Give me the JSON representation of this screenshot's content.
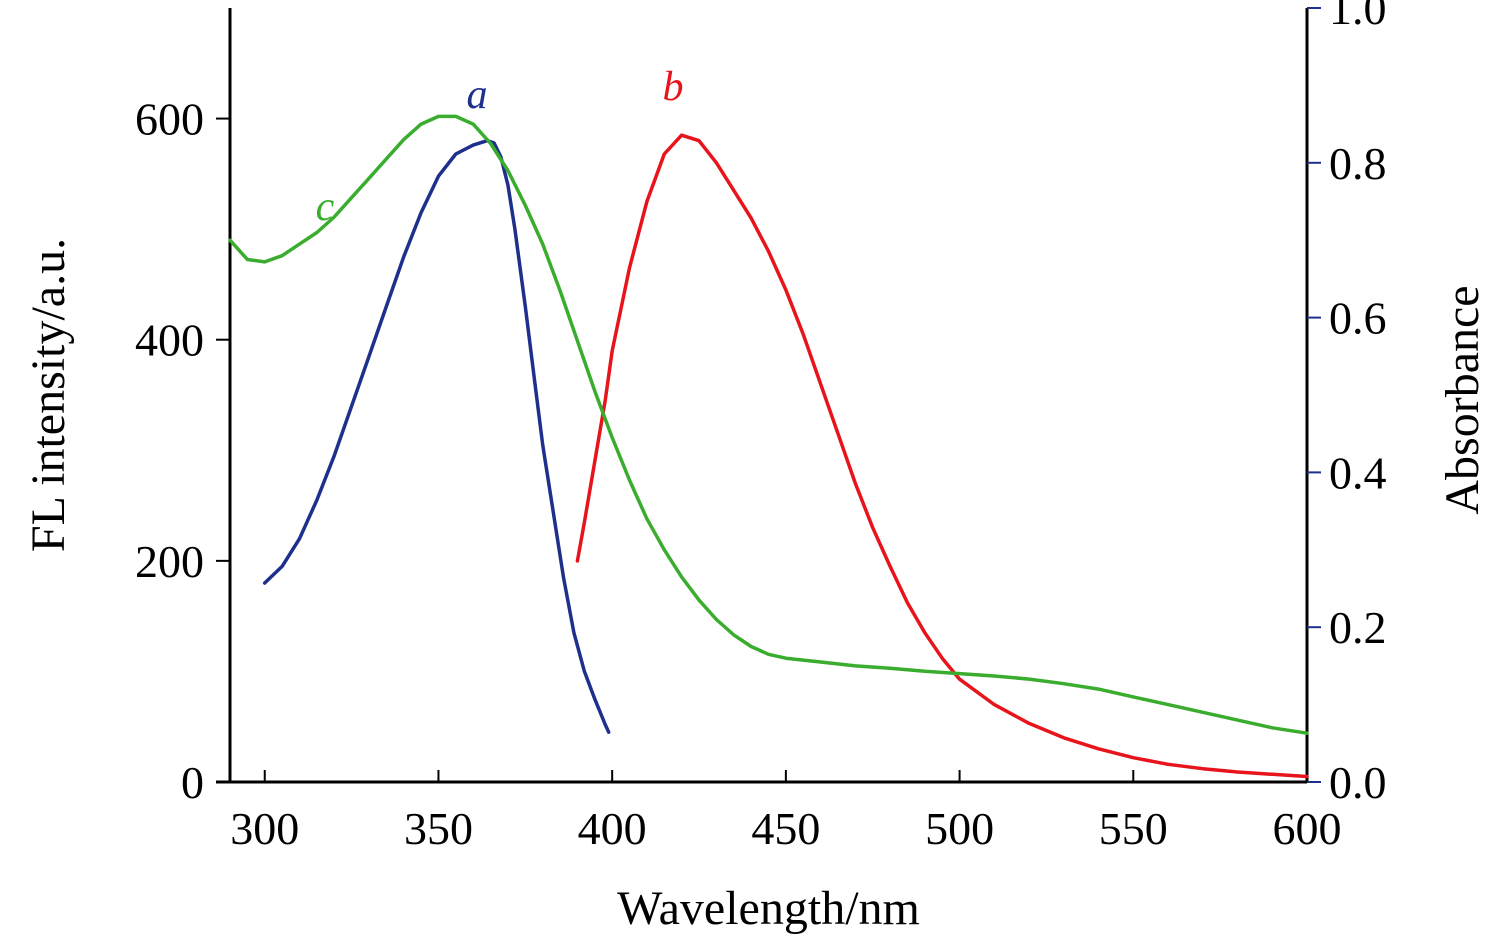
{
  "chart_data": {
    "type": "line",
    "title": "",
    "xlabel": "Wavelength/nm",
    "ylabel_left": "FL intensity/a.u.",
    "ylabel_right": "Absorbance",
    "xlim": [
      290,
      600
    ],
    "ylim_left": [
      0,
      700
    ],
    "ylim_right": [
      0,
      1.0
    ],
    "x_ticks": [
      300,
      350,
      400,
      450,
      500,
      550,
      600
    ],
    "y_ticks_left": [
      0,
      200,
      400,
      600
    ],
    "y_ticks_right": [
      "0.0",
      "0.2",
      "0.4",
      "0.6",
      "0.8",
      "1.0"
    ],
    "grid": false,
    "legend": "none",
    "series": [
      {
        "label": "a",
        "axis": "left",
        "color": "#1e2f8c",
        "points": [
          [
            300,
            180
          ],
          [
            305,
            195
          ],
          [
            310,
            220
          ],
          [
            315,
            255
          ],
          [
            320,
            295
          ],
          [
            325,
            340
          ],
          [
            330,
            385
          ],
          [
            335,
            430
          ],
          [
            340,
            475
          ],
          [
            345,
            515
          ],
          [
            350,
            548
          ],
          [
            355,
            568
          ],
          [
            360,
            576
          ],
          [
            364,
            580
          ],
          [
            366,
            578
          ],
          [
            368,
            565
          ],
          [
            370,
            540
          ],
          [
            372,
            500
          ],
          [
            375,
            430
          ],
          [
            378,
            355
          ],
          [
            380,
            305
          ],
          [
            383,
            245
          ],
          [
            386,
            185
          ],
          [
            389,
            135
          ],
          [
            392,
            100
          ],
          [
            395,
            75
          ],
          [
            398,
            52
          ],
          [
            399,
            45
          ]
        ]
      },
      {
        "label": "b",
        "axis": "left",
        "color": "#e8141c",
        "points": [
          [
            390,
            200
          ],
          [
            392,
            235
          ],
          [
            395,
            290
          ],
          [
            398,
            345
          ],
          [
            400,
            390
          ],
          [
            405,
            465
          ],
          [
            410,
            525
          ],
          [
            415,
            568
          ],
          [
            420,
            585
          ],
          [
            425,
            580
          ],
          [
            430,
            560
          ],
          [
            435,
            535
          ],
          [
            440,
            510
          ],
          [
            445,
            480
          ],
          [
            450,
            445
          ],
          [
            455,
            405
          ],
          [
            460,
            360
          ],
          [
            465,
            315
          ],
          [
            470,
            270
          ],
          [
            475,
            230
          ],
          [
            480,
            195
          ],
          [
            485,
            162
          ],
          [
            490,
            135
          ],
          [
            495,
            112
          ],
          [
            500,
            93
          ],
          [
            510,
            70
          ],
          [
            520,
            53
          ],
          [
            530,
            40
          ],
          [
            540,
            30
          ],
          [
            550,
            22
          ],
          [
            560,
            16
          ],
          [
            570,
            12
          ],
          [
            580,
            9
          ],
          [
            590,
            7
          ],
          [
            600,
            5
          ]
        ]
      },
      {
        "label": "c",
        "axis": "right",
        "color": "#3aad2e",
        "points": [
          [
            290,
            0.7
          ],
          [
            295,
            0.675
          ],
          [
            300,
            0.672
          ],
          [
            305,
            0.68
          ],
          [
            310,
            0.695
          ],
          [
            315,
            0.71
          ],
          [
            320,
            0.73
          ],
          [
            325,
            0.755
          ],
          [
            330,
            0.78
          ],
          [
            335,
            0.805
          ],
          [
            340,
            0.83
          ],
          [
            345,
            0.85
          ],
          [
            350,
            0.86
          ],
          [
            355,
            0.86
          ],
          [
            360,
            0.85
          ],
          [
            365,
            0.825
          ],
          [
            370,
            0.79
          ],
          [
            375,
            0.745
          ],
          [
            380,
            0.695
          ],
          [
            385,
            0.635
          ],
          [
            390,
            0.57
          ],
          [
            395,
            0.505
          ],
          [
            400,
            0.445
          ],
          [
            405,
            0.39
          ],
          [
            410,
            0.34
          ],
          [
            415,
            0.3
          ],
          [
            420,
            0.265
          ],
          [
            425,
            0.235
          ],
          [
            430,
            0.21
          ],
          [
            435,
            0.19
          ],
          [
            440,
            0.175
          ],
          [
            445,
            0.165
          ],
          [
            450,
            0.16
          ],
          [
            460,
            0.155
          ],
          [
            470,
            0.15
          ],
          [
            480,
            0.147
          ],
          [
            490,
            0.143
          ],
          [
            500,
            0.14
          ],
          [
            510,
            0.137
          ],
          [
            520,
            0.133
          ],
          [
            530,
            0.127
          ],
          [
            540,
            0.12
          ],
          [
            550,
            0.11
          ],
          [
            560,
            0.1
          ],
          [
            570,
            0.09
          ],
          [
            580,
            0.08
          ],
          [
            590,
            0.07
          ],
          [
            600,
            0.063
          ]
        ]
      }
    ]
  },
  "colors": {
    "axis": "#000000",
    "right_ticks": "#1e2f8c"
  }
}
